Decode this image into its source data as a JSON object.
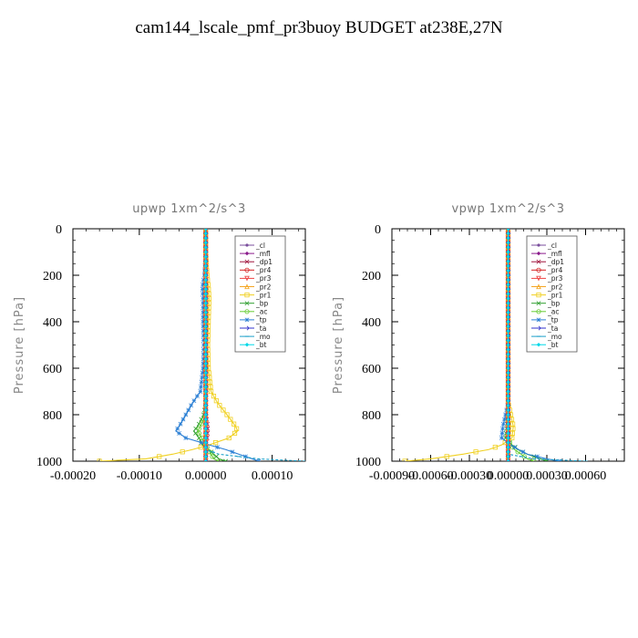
{
  "title": "cam144_lscale_pmf_pr3buoy  BUDGET at238E,27N",
  "legend_entries": [
    {
      "name": "_cl",
      "color": "#7b4f9d",
      "marker": "dot"
    },
    {
      "name": "_mfl",
      "color": "#8b1a8b",
      "marker": "diamond"
    },
    {
      "name": "_dp1",
      "color": "#a0143c",
      "marker": "x"
    },
    {
      "name": "_pr4",
      "color": "#d42020",
      "marker": "circle"
    },
    {
      "name": "_pr3",
      "color": "#ee4444",
      "marker": "triangle-down"
    },
    {
      "name": "_pr2",
      "color": "#f5a623",
      "marker": "triangle-up"
    },
    {
      "name": "_pr1",
      "color": "#f0d020",
      "marker": "square"
    },
    {
      "name": "_bp",
      "color": "#2e9e2e",
      "marker": "x"
    },
    {
      "name": "_ac",
      "color": "#66cc33",
      "marker": "circle"
    },
    {
      "name": "_tp",
      "color": "#2a7fd4",
      "marker": "star"
    },
    {
      "name": "_ta",
      "color": "#3333cc",
      "marker": "arrow"
    },
    {
      "name": "_mo",
      "color": "#1a9fc9",
      "marker": "dash"
    },
    {
      "name": "_bt",
      "color": "#00d8e8",
      "marker": "diamond"
    }
  ],
  "chart_data": [
    {
      "type": "line",
      "title": "upwp   1xm^2/s^3",
      "ylabel": "Pressure [hPa]",
      "xlabel": "",
      "ylim": [
        1000,
        0
      ],
      "xlim": [
        -0.0002,
        0.00015
      ],
      "xticks": [
        -0.0002,
        -0.0001,
        0.0,
        0.0001
      ],
      "xtick_labels": [
        "-0.00020",
        "-0.00010",
        "0.00000",
        "0.00010"
      ],
      "yticks": [
        0,
        200,
        400,
        600,
        800,
        1000
      ],
      "ytick_labels": [
        "0",
        "200",
        "400",
        "600",
        "800",
        "1000"
      ],
      "grid": false,
      "legend_position": "top-right",
      "pressure": [
        0,
        100,
        200,
        250,
        300,
        400,
        500,
        600,
        700,
        750,
        800,
        850,
        870,
        900,
        930,
        950,
        970,
        990,
        1000
      ],
      "series": [
        {
          "name": "_cl",
          "values": [
            0,
            0,
            0,
            0,
            0,
            0,
            0,
            0,
            0,
            0,
            0,
            0,
            0,
            0,
            0,
            0,
            0,
            0,
            0
          ]
        },
        {
          "name": "_mfl",
          "values": [
            0,
            0,
            0,
            0,
            0,
            0,
            0,
            0,
            0,
            0,
            0,
            0,
            0,
            0,
            0,
            0,
            0,
            0,
            0
          ]
        },
        {
          "name": "_dp1",
          "values": [
            0,
            0,
            0,
            0,
            0,
            0,
            0,
            0,
            0,
            0,
            0,
            3e-06,
            3e-06,
            2e-06,
            0,
            0,
            0,
            0,
            0
          ]
        },
        {
          "name": "_pr4",
          "values": [
            0,
            0,
            0,
            0,
            0,
            0,
            0,
            0,
            0,
            0,
            0,
            0,
            0,
            0,
            0,
            0,
            0,
            0,
            0
          ]
        },
        {
          "name": "_pr3",
          "values": [
            0,
            0,
            0,
            0,
            0,
            0,
            0,
            0,
            0,
            0,
            0,
            0,
            0,
            0,
            0,
            0,
            0,
            0,
            0
          ]
        },
        {
          "name": "_pr2",
          "values": [
            0,
            0,
            0,
            0,
            0,
            0,
            0,
            0,
            0,
            0,
            0,
            0,
            0,
            0,
            0,
            0,
            0,
            0,
            0
          ]
        },
        {
          "name": "_pr1",
          "values": [
            0,
            0,
            2e-06,
            4e-06,
            5e-06,
            4e-06,
            3e-06,
            4e-06,
            8e-06,
            1.8e-05,
            3.2e-05,
            4.5e-05,
            4.8e-05,
            3.5e-05,
            5e-06,
            -2e-05,
            -5e-05,
            -9e-05,
            -0.00016
          ]
        },
        {
          "name": "_bp",
          "values": [
            0,
            0,
            0,
            0,
            0,
            0,
            0,
            0,
            0,
            0,
            -3e-06,
            -1.2e-05,
            -1.8e-05,
            -1e-05,
            -5e-06,
            5e-06,
            1.2e-05,
            2e-05,
            3e-05
          ]
        },
        {
          "name": "_ac",
          "values": [
            0,
            0,
            0,
            0,
            0,
            0,
            0,
            0,
            0,
            0,
            0,
            -8e-06,
            -1.2e-05,
            -6e-06,
            0,
            4e-06,
            8e-06,
            1.2e-05,
            2e-05
          ]
        },
        {
          "name": "_tp",
          "values": [
            0,
            0,
            -2e-06,
            -5e-06,
            -4e-06,
            -4e-06,
            -3e-06,
            -4e-06,
            -8e-06,
            -2e-05,
            -3e-05,
            -4e-05,
            -4.5e-05,
            -3e-05,
            5e-06,
            3e-05,
            5e-05,
            7e-05,
            8e-05
          ]
        },
        {
          "name": "_ta",
          "values": [
            0,
            0,
            0,
            0,
            0,
            0,
            0,
            0,
            0,
            0,
            0,
            0,
            0,
            0,
            0,
            0,
            0,
            0,
            0
          ]
        },
        {
          "name": "_mo",
          "values": [
            0,
            0,
            0,
            0,
            0,
            0,
            0,
            0,
            0,
            0,
            0,
            0,
            0,
            0,
            0,
            0,
            2e-05,
            8e-05,
            0.00015
          ]
        },
        {
          "name": "_bt",
          "values": [
            0,
            0,
            0,
            0,
            0,
            0,
            0,
            0,
            0,
            0,
            0,
            0,
            0,
            0,
            0,
            0,
            0,
            0,
            0
          ]
        }
      ]
    },
    {
      "type": "line",
      "title": "vpwp   1xm^2/s^3",
      "ylabel": "Pressure [hPa]",
      "xlabel": "",
      "ylim": [
        1000,
        0
      ],
      "xlim": [
        -0.0009,
        0.0009
      ],
      "xticks": [
        -0.0009,
        -0.0006,
        -0.0003,
        0.0,
        0.0003,
        0.0006
      ],
      "xtick_labels": [
        "-0.00090",
        "-0.00060",
        "-0.00030",
        "0.00000",
        "0.00030",
        "0.00060"
      ],
      "yticks": [
        0,
        200,
        400,
        600,
        800,
        1000
      ],
      "ytick_labels": [
        "0",
        "200",
        "400",
        "600",
        "800",
        "1000"
      ],
      "grid": false,
      "legend_position": "top-right",
      "pressure": [
        0,
        100,
        200,
        300,
        400,
        500,
        600,
        700,
        750,
        800,
        850,
        900,
        930,
        950,
        970,
        990,
        1000
      ],
      "series": [
        {
          "name": "_cl",
          "values": [
            0,
            0,
            0,
            0,
            0,
            0,
            0,
            0,
            0,
            0,
            0,
            0,
            0,
            0,
            0,
            0,
            0
          ]
        },
        {
          "name": "_mfl",
          "values": [
            0,
            0,
            0,
            0,
            0,
            0,
            0,
            0,
            0,
            0,
            0,
            0,
            0,
            0,
            0,
            0,
            0
          ]
        },
        {
          "name": "_dp1",
          "values": [
            0,
            0,
            0,
            0,
            0,
            0,
            0,
            0,
            0,
            0,
            0,
            0,
            0,
            0,
            0,
            0,
            0
          ]
        },
        {
          "name": "_pr4",
          "values": [
            0,
            0,
            0,
            0,
            0,
            0,
            0,
            0,
            0,
            0,
            0,
            0,
            0,
            0,
            0,
            0,
            0
          ]
        },
        {
          "name": "_pr3",
          "values": [
            0,
            0,
            0,
            0,
            0,
            0,
            0,
            0,
            0,
            0,
            0,
            0,
            0,
            0,
            0,
            0,
            0
          ]
        },
        {
          "name": "_pr2",
          "values": [
            0,
            0,
            0,
            0,
            0,
            0,
            0,
            0,
            0,
            0,
            0,
            0,
            0,
            0,
            0,
            0,
            0
          ]
        },
        {
          "name": "_pr1",
          "values": [
            0,
            0,
            0,
            0,
            0,
            0,
            0,
            0,
            0,
            2e-05,
            4e-05,
            3e-05,
            -5e-05,
            -0.00015,
            -0.00035,
            -0.0006,
            -0.0008
          ]
        },
        {
          "name": "_bp",
          "values": [
            0,
            0,
            0,
            0,
            0,
            0,
            0,
            0,
            0,
            0,
            -1e-05,
            -2e-05,
            3e-05,
            8e-05,
            0.00015,
            0.00025,
            0.0003
          ]
        },
        {
          "name": "_ac",
          "values": [
            0,
            0,
            0,
            0,
            0,
            0,
            0,
            0,
            0,
            0,
            0,
            0,
            2e-05,
            5e-05,
            0.0001,
            0.00015,
            0.0002
          ]
        },
        {
          "name": "_tp",
          "values": [
            0,
            0,
            0,
            0,
            0,
            0,
            0,
            0,
            0,
            -2e-05,
            -4e-05,
            -5e-05,
            2e-05,
            8e-05,
            0.00015,
            0.0003,
            0.0004
          ]
        },
        {
          "name": "_ta",
          "values": [
            0,
            0,
            0,
            0,
            0,
            0,
            0,
            0,
            0,
            0,
            0,
            0,
            0,
            0,
            0,
            0,
            0
          ]
        },
        {
          "name": "_mo",
          "values": [
            0,
            0,
            0,
            0,
            0,
            0,
            0,
            0,
            0,
            0,
            0,
            0,
            0,
            0,
            0,
            0.0002,
            0.0006
          ]
        },
        {
          "name": "_bt",
          "values": [
            0,
            0,
            0,
            0,
            0,
            0,
            0,
            0,
            0,
            0,
            0,
            0,
            0,
            0,
            0,
            0,
            0
          ]
        }
      ]
    }
  ]
}
